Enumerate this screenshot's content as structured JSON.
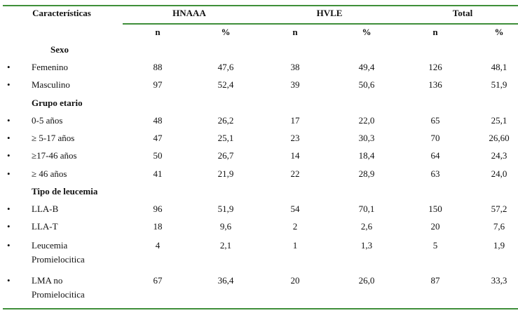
{
  "header": {
    "characteristics": "Características",
    "groups": [
      "HNAAA",
      "HVLE",
      "Total"
    ],
    "sub": [
      "n",
      "%",
      "n",
      "%",
      "n",
      "%"
    ]
  },
  "rows": [
    {
      "type": "section",
      "label": "Sexo"
    },
    {
      "type": "item",
      "label": "Femenino",
      "values": [
        "88",
        "47,6",
        "38",
        "49,4",
        "126",
        "48,1"
      ]
    },
    {
      "type": "item",
      "label": "Masculino",
      "values": [
        "97",
        "52,4",
        "39",
        "50,6",
        "136",
        "51,9"
      ]
    },
    {
      "type": "section",
      "label": "Grupo etario"
    },
    {
      "type": "item",
      "label": "0-5 años",
      "values": [
        "48",
        "26,2",
        "17",
        "22,0",
        "65",
        "25,1"
      ]
    },
    {
      "type": "item",
      "label": "≥ 5-17 años",
      "values": [
        "47",
        "25,1",
        "23",
        "30,3",
        "70",
        "26,60"
      ]
    },
    {
      "type": "item",
      "label": "≥17-46 años",
      "values": [
        "50",
        "26,7",
        "14",
        "18,4",
        "64",
        "24,3"
      ]
    },
    {
      "type": "item",
      "label": "≥ 46 años",
      "values": [
        "41",
        "21,9",
        "22",
        "28,9",
        "63",
        "24,0"
      ]
    },
    {
      "type": "section",
      "label": "Tipo de leucemia"
    },
    {
      "type": "item",
      "label": "LLA-B",
      "values": [
        "96",
        "51,9",
        "54",
        "70,1",
        "150",
        "57,2"
      ]
    },
    {
      "type": "item",
      "label": "LLA-T",
      "values": [
        "18",
        "9,6",
        "2",
        "2,6",
        "20",
        "7,6"
      ]
    },
    {
      "type": "item",
      "label": "Leucemia Promielocitica",
      "label2": "Promielocitica",
      "label1": "Leucemia",
      "values": [
        "4",
        "2,1",
        "1",
        "1,3",
        "5",
        "1,9"
      ]
    },
    {
      "type": "item",
      "label": "LMA no Promielocitica",
      "label1": "LMA no",
      "label2": "Promielocitica",
      "values": [
        "67",
        "36,4",
        "20",
        "26,0",
        "87",
        "33,3"
      ]
    }
  ],
  "bullet": "•",
  "colors": {
    "rule": "#3f8f3a"
  }
}
